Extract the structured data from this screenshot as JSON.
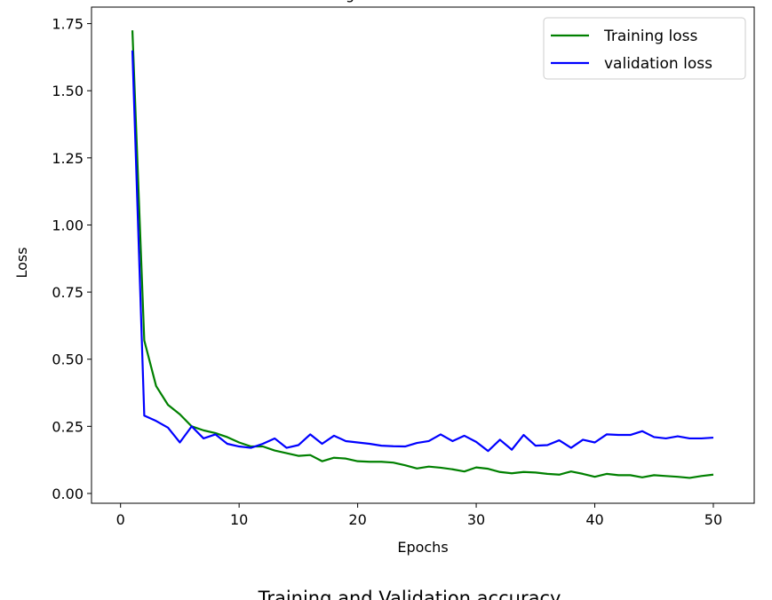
{
  "top_title_fragment": "g",
  "next_chart_title": "Training and Validation accuracy",
  "chart_data": {
    "type": "line",
    "title": "",
    "xlabel": "Epochs",
    "ylabel": "Loss",
    "xlim": [
      -2.45,
      53.45
    ],
    "ylim": [
      -0.0365,
      1.8115
    ],
    "xticks": [
      0,
      10,
      20,
      30,
      40,
      50
    ],
    "yticks": [
      0.0,
      0.25,
      0.5,
      0.75,
      1.0,
      1.25,
      1.5,
      1.75
    ],
    "ytick_labels": [
      "0.00",
      "0.25",
      "0.50",
      "0.75",
      "1.00",
      "1.25",
      "1.50",
      "1.75"
    ],
    "grid": false,
    "legend_placement": "top-right",
    "x": [
      1,
      2,
      3,
      4,
      5,
      6,
      7,
      8,
      9,
      10,
      11,
      12,
      13,
      14,
      15,
      16,
      17,
      18,
      19,
      20,
      21,
      22,
      23,
      24,
      25,
      26,
      27,
      28,
      29,
      30,
      31,
      32,
      33,
      34,
      35,
      36,
      37,
      38,
      39,
      40,
      41,
      42,
      43,
      44,
      45,
      46,
      47,
      48,
      49,
      50
    ],
    "series": [
      {
        "name": "Training loss",
        "color": "#008000",
        "values": [
          1.725,
          0.57,
          0.4,
          0.33,
          0.295,
          0.25,
          0.235,
          0.225,
          0.21,
          0.19,
          0.175,
          0.175,
          0.16,
          0.15,
          0.14,
          0.143,
          0.12,
          0.133,
          0.13,
          0.12,
          0.118,
          0.118,
          0.115,
          0.105,
          0.093,
          0.1,
          0.096,
          0.09,
          0.082,
          0.097,
          0.092,
          0.08,
          0.075,
          0.08,
          0.078,
          0.073,
          0.07,
          0.082,
          0.073,
          0.062,
          0.073,
          0.068,
          0.068,
          0.06,
          0.068,
          0.065,
          0.062,
          0.058,
          0.065,
          0.07
        ]
      },
      {
        "name": "validation loss",
        "color": "#0000ff",
        "values": [
          1.65,
          0.29,
          0.27,
          0.245,
          0.19,
          0.25,
          0.205,
          0.22,
          0.185,
          0.175,
          0.17,
          0.185,
          0.205,
          0.17,
          0.18,
          0.22,
          0.185,
          0.215,
          0.195,
          0.19,
          0.185,
          0.178,
          0.176,
          0.175,
          0.188,
          0.195,
          0.22,
          0.195,
          0.215,
          0.192,
          0.158,
          0.2,
          0.163,
          0.218,
          0.178,
          0.18,
          0.198,
          0.17,
          0.2,
          0.19,
          0.22,
          0.218,
          0.218,
          0.232,
          0.21,
          0.205,
          0.213,
          0.205,
          0.205,
          0.208
        ]
      }
    ]
  }
}
